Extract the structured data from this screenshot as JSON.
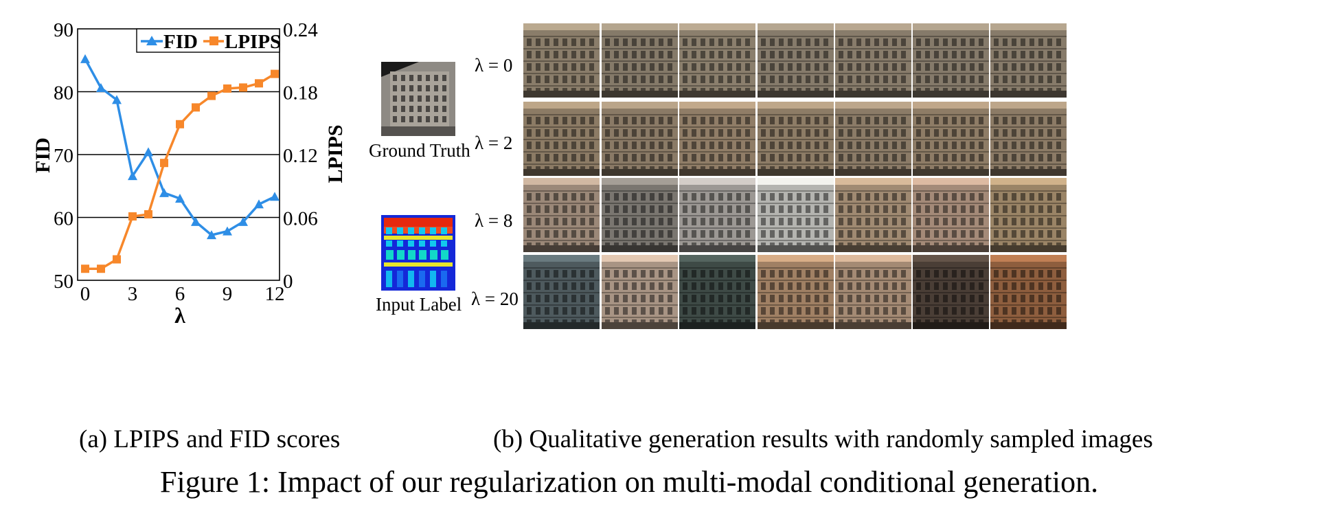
{
  "chart_data": {
    "type": "line",
    "x": [
      0,
      1,
      2,
      3,
      4,
      5,
      6,
      7,
      8,
      9,
      10,
      11,
      12
    ],
    "series": [
      {
        "name": "FID",
        "axis": "left",
        "color": "#2e8ee6",
        "marker": "triangle",
        "values": [
          85.2,
          80.6,
          78.7,
          66.6,
          70.4,
          63.9,
          63.0,
          59.3,
          57.2,
          57.8,
          59.3,
          62.1,
          63.3
        ]
      },
      {
        "name": "LPIPS",
        "axis": "right",
        "color": "#f7872a",
        "marker": "square",
        "values": [
          0.011,
          0.011,
          0.02,
          0.061,
          0.063,
          0.112,
          0.149,
          0.165,
          0.176,
          0.183,
          0.184,
          0.188,
          0.197
        ]
      }
    ],
    "xlabel": "λ",
    "ylabel_left": "FID",
    "ylabel_right": "LPIPS",
    "xlim": [
      0,
      12
    ],
    "ylim_left": [
      50,
      90
    ],
    "ylim_right": [
      0,
      0.24
    ],
    "x_ticks": [
      "0",
      "3",
      "6",
      "9",
      "12"
    ],
    "y_ticks_left": [
      "50",
      "60",
      "70",
      "80",
      "90"
    ],
    "y_ticks_right": [
      "0",
      "0.06",
      "0.12",
      "0.18",
      "0.24"
    ],
    "grid": "horizontal",
    "legend": "top-right"
  },
  "panel_b": {
    "ground_truth_label": "Ground Truth",
    "input_label": "Input Label",
    "rows": [
      {
        "label": "λ = 0",
        "tones": [
          "#8a7d6a",
          "#857a69",
          "#8b7f6d",
          "#867b6b",
          "#887c6b",
          "#857a6a",
          "#877b6a"
        ]
      },
      {
        "label": "λ = 2",
        "tones": [
          "#8c7b65",
          "#8a7a66",
          "#907d67",
          "#8d7c66",
          "#8b7b67",
          "#8e7c66",
          "#8c7b66"
        ]
      },
      {
        "label": "λ = 8",
        "tones": [
          "#9b8878",
          "#7a7670",
          "#9c9894",
          "#b4b4b0",
          "#a08a72",
          "#a48a78",
          "#9a8466"
        ]
      },
      {
        "label": "λ = 20",
        "tones": [
          "#4e5a5e",
          "#a89484",
          "#3e4a46",
          "#a08064",
          "#a48a74",
          "#4a3e36",
          "#8e5e3e"
        ]
      }
    ]
  },
  "captions": {
    "sub_a": "(a) LPIPS and FID scores",
    "sub_b": "(b) Qualitative generation results with randomly sampled images",
    "figure": "Figure 1: Impact of our regularization on multi-modal conditional generation."
  },
  "colors": {
    "fid": "#2e8ee6",
    "lpips": "#f7872a"
  }
}
